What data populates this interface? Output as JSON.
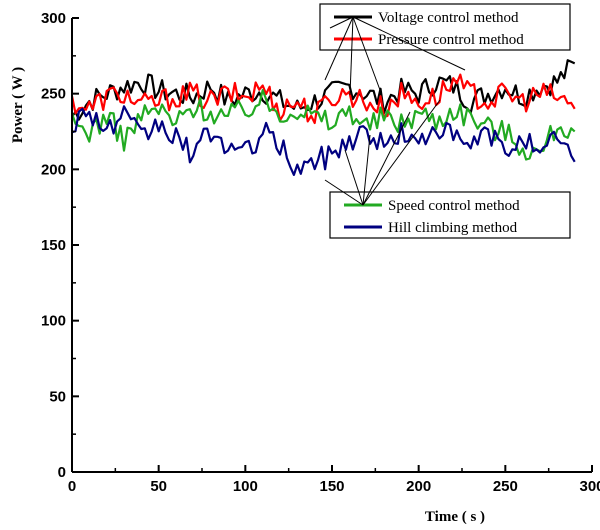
{
  "chart_data": {
    "type": "line",
    "title": "",
    "xlabel": "Time ( s )",
    "ylabel": "Power ( W )",
    "xlim": [
      0,
      300
    ],
    "ylim": [
      0,
      300
    ],
    "x_ticks": [
      0,
      50,
      100,
      150,
      200,
      250,
      300
    ],
    "y_ticks": [
      0,
      50,
      100,
      150,
      200,
      250,
      300
    ],
    "grid": false,
    "x": [
      0,
      10,
      20,
      30,
      40,
      50,
      60,
      70,
      80,
      90,
      100,
      110,
      120,
      130,
      140,
      150,
      160,
      170,
      180,
      190,
      200,
      210,
      220,
      230,
      240,
      250,
      260,
      270,
      280,
      290
    ],
    "series": [
      {
        "name": "Voltage control method",
        "color": "#000000",
        "values": [
          235,
          245,
          250,
          255,
          258,
          252,
          250,
          248,
          255,
          245,
          250,
          252,
          245,
          240,
          245,
          250,
          255,
          250,
          245,
          252,
          250,
          258,
          255,
          245,
          250,
          255,
          248,
          255,
          258,
          270
        ]
      },
      {
        "name": "Pressure control method",
        "color": "#ff0000",
        "values": [
          245,
          240,
          248,
          250,
          242,
          245,
          248,
          250,
          245,
          250,
          248,
          255,
          240,
          245,
          235,
          248,
          250,
          245,
          240,
          250,
          245,
          248,
          258,
          250,
          245,
          250,
          245,
          250,
          248,
          240
        ]
      },
      {
        "name": "Speed control method",
        "color": "#22aa22",
        "values": [
          230,
          225,
          235,
          220,
          235,
          240,
          230,
          242,
          238,
          235,
          240,
          245,
          238,
          240,
          235,
          230,
          240,
          228,
          235,
          230,
          238,
          232,
          240,
          235,
          228,
          225,
          215,
          210,
          230,
          225
        ]
      },
      {
        "name": "Hill climbing method",
        "color": "#000080",
        "values": [
          230,
          240,
          225,
          235,
          220,
          230,
          220,
          210,
          225,
          215,
          210,
          225,
          215,
          200,
          205,
          210,
          220,
          225,
          215,
          225,
          215,
          230,
          220,
          215,
          225,
          210,
          225,
          205,
          225,
          205
        ]
      }
    ],
    "legend_groups": [
      {
        "position": "top-right",
        "entries": [
          "Voltage control method",
          "Pressure control method"
        ]
      },
      {
        "position": "center-right",
        "entries": [
          "Speed control method",
          "Hill climbing method"
        ]
      }
    ]
  }
}
